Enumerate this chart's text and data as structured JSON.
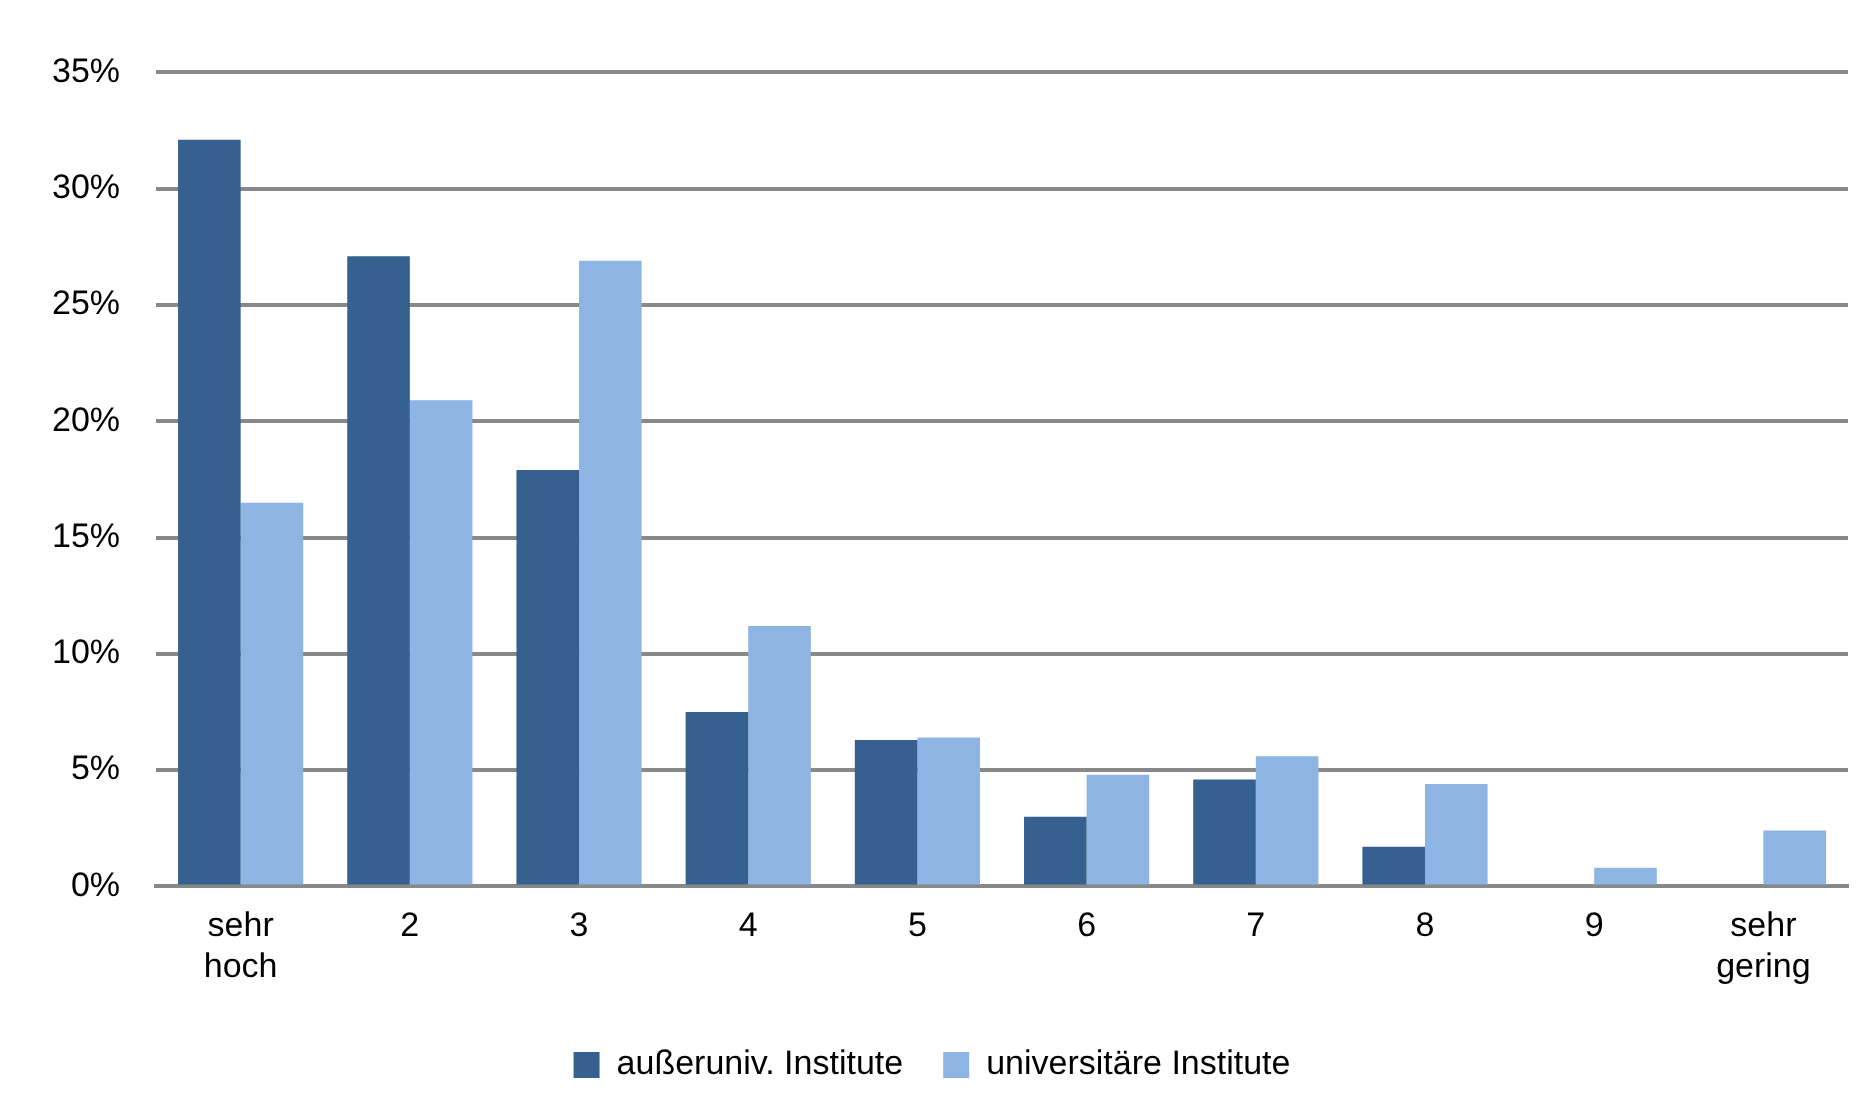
{
  "chart_data": {
    "type": "bar",
    "categories": [
      "sehr hoch",
      "2",
      "3",
      "4",
      "5",
      "6",
      "7",
      "8",
      "9",
      "sehr gering"
    ],
    "series": [
      {
        "name": "außeruniv. Institute",
        "color": "#36608f",
        "values": [
          32.1,
          27.1,
          17.9,
          7.5,
          6.3,
          3.0,
          4.6,
          1.7,
          0,
          0
        ]
      },
      {
        "name": "universitäre Institute",
        "color": "#8eb4e3",
        "values": [
          16.5,
          20.9,
          26.9,
          11.2,
          6.4,
          4.8,
          5.6,
          4.4,
          0.8,
          2.4
        ]
      }
    ],
    "ylim": [
      0,
      35
    ],
    "yticks": [
      {
        "value": 0,
        "label": "0%"
      },
      {
        "value": 5,
        "label": "5%"
      },
      {
        "value": 10,
        "label": "10%"
      },
      {
        "value": 15,
        "label": "15%"
      },
      {
        "value": 20,
        "label": "20%"
      },
      {
        "value": 25,
        "label": "25%"
      },
      {
        "value": 30,
        "label": "30%"
      },
      {
        "value": 35,
        "label": "35%"
      }
    ],
    "grid": "y",
    "legend": "bottom"
  }
}
